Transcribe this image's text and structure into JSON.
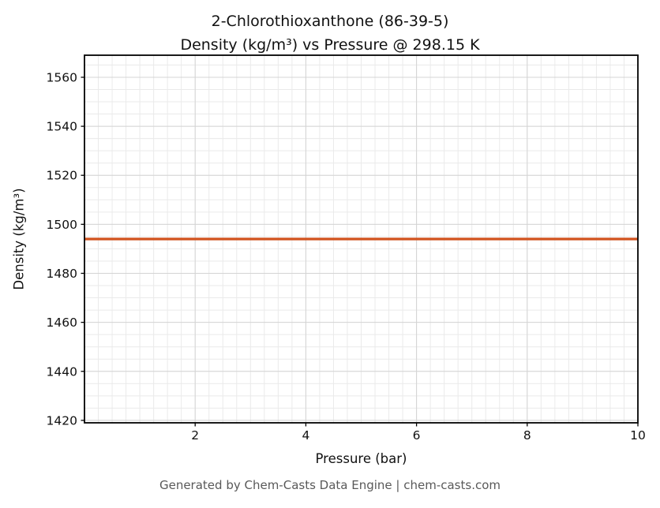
{
  "figure": {
    "footer_text": "Generated by Chem-Casts Data Engine | chem-casts.com"
  },
  "chart_data": {
    "type": "line",
    "title_lines": [
      "2-Chlorothioxanthone (86-39-5)",
      "Density (kg/m³) vs Pressure @ 298.15 K"
    ],
    "xlabel": "Pressure (bar)",
    "ylabel": "Density (kg/m³)",
    "xlim": [
      0,
      10
    ],
    "ylim": [
      1419,
      1569
    ],
    "xticks": [
      2,
      4,
      6,
      8,
      10
    ],
    "yticks": [
      1420,
      1440,
      1460,
      1480,
      1500,
      1520,
      1540,
      1560
    ],
    "minor_x_step": 0.25,
    "minor_y_step": 5,
    "grid": true,
    "legend": "none",
    "series": [
      {
        "name": "Density",
        "x": [
          0,
          10
        ],
        "y": [
          1494,
          1494
        ],
        "color": "#d1521d",
        "note": "constant density 1494 kg/m³ across 0–10 bar at 298.15 K"
      }
    ]
  },
  "colors": {
    "line": "#d1521d",
    "grid_major": "#d4d4d4",
    "grid_minor": "#eaeaea",
    "axis": "#000000",
    "text": "#111111",
    "footer_text": "#595959"
  }
}
